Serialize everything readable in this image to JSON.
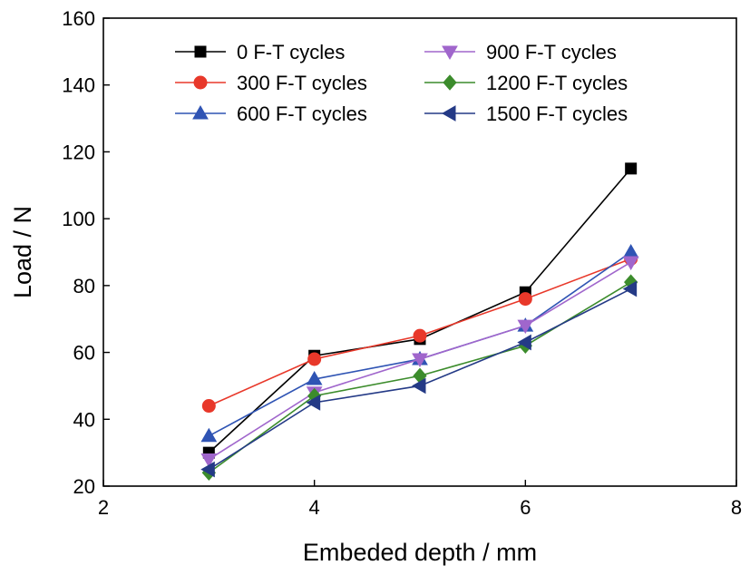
{
  "chart_data": {
    "type": "line",
    "xlabel": "Embeded depth  / mm",
    "ylabel": "Load / N",
    "xlim": [
      2,
      8
    ],
    "ylim": [
      20,
      160
    ],
    "xticks": [
      2,
      4,
      6,
      8
    ],
    "yticks": [
      20,
      40,
      60,
      80,
      100,
      120,
      140,
      160
    ],
    "grid": false,
    "legend_position": "top",
    "series": [
      {
        "name": "0 F-T cycles",
        "color": "#000000",
        "marker": "square",
        "x": [
          3,
          4,
          5,
          6,
          7
        ],
        "y": [
          30,
          59,
          64,
          78,
          115
        ]
      },
      {
        "name": "300 F-T cycles",
        "color": "#e8382a",
        "marker": "circle",
        "x": [
          3,
          4,
          5,
          6,
          7
        ],
        "y": [
          44,
          58,
          65,
          76,
          88
        ]
      },
      {
        "name": "600 F-T cycles",
        "color": "#2f54b4",
        "marker": "triangle-up",
        "x": [
          3,
          4,
          5,
          6,
          7
        ],
        "y": [
          35,
          52,
          58,
          68,
          90
        ]
      },
      {
        "name": "900 F-T cycles",
        "color": "#a066cc",
        "marker": "triangle-down",
        "x": [
          3,
          4,
          5,
          6,
          7
        ],
        "y": [
          28,
          48,
          58,
          68,
          87
        ]
      },
      {
        "name": "1200 F-T cycles",
        "color": "#3c8c2c",
        "marker": "diamond",
        "x": [
          3,
          4,
          5,
          6,
          7
        ],
        "y": [
          24,
          47,
          53,
          62,
          81
        ]
      },
      {
        "name": "1500 F-T cycles",
        "color": "#243a86",
        "marker": "triangle-left",
        "x": [
          3,
          4,
          5,
          6,
          7
        ],
        "y": [
          25,
          45,
          50,
          63,
          79
        ]
      }
    ]
  }
}
